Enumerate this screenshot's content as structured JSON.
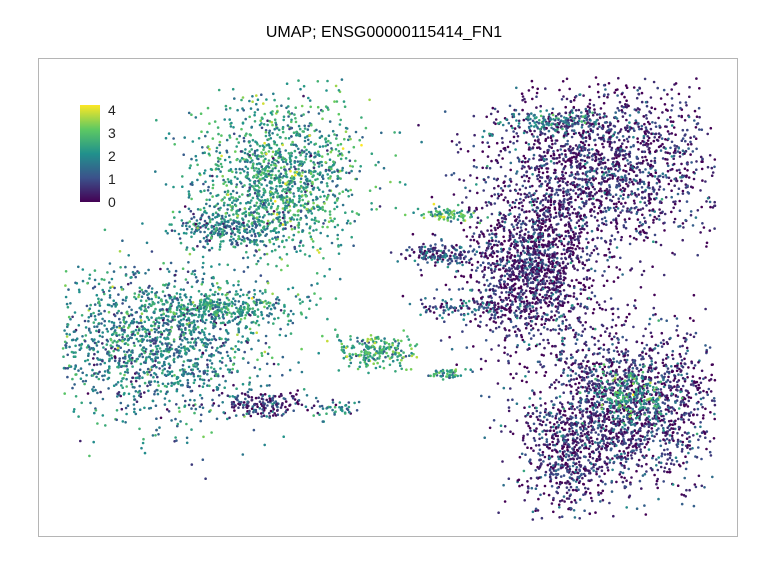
{
  "chart_data": {
    "type": "scatter",
    "title": "UMAP; ENSG00000115414_FN1",
    "xlabel": "",
    "ylabel": "",
    "grid": false,
    "legend_placement": "top-left",
    "colorscale": "viridis",
    "colorbar": {
      "min": 0,
      "max": 4.2,
      "ticks": [
        "0",
        "1",
        "2",
        "3",
        "4"
      ],
      "tick_values": [
        0,
        1,
        2,
        3,
        4
      ]
    },
    "clusters": [
      {
        "name": "upper-left island",
        "cx": 0.33,
        "cy": 0.77,
        "sx": 0.065,
        "sy": 0.09,
        "n": 1400,
        "mean": 2.3
      },
      {
        "name": "upper-left tail",
        "cx": 0.25,
        "cy": 0.66,
        "sx": 0.04,
        "sy": 0.02,
        "n": 250,
        "mean": 1.7
      },
      {
        "name": "left lobe",
        "cx": 0.14,
        "cy": 0.4,
        "sx": 0.085,
        "sy": 0.085,
        "n": 1500,
        "mean": 1.8
      },
      {
        "name": "left lobe streak",
        "cx": 0.24,
        "cy": 0.48,
        "sx": 0.06,
        "sy": 0.02,
        "n": 350,
        "mean": 2.2
      },
      {
        "name": "small bottom cluster",
        "cx": 0.31,
        "cy": 0.26,
        "sx": 0.035,
        "sy": 0.015,
        "n": 180,
        "mean": 0.6
      },
      {
        "name": "bottom specks",
        "cx": 0.42,
        "cy": 0.25,
        "sx": 0.02,
        "sy": 0.01,
        "n": 40,
        "mean": 1.8
      },
      {
        "name": "center streak",
        "cx": 0.48,
        "cy": 0.38,
        "sx": 0.03,
        "sy": 0.02,
        "n": 220,
        "mean": 2.5
      },
      {
        "name": "center speck",
        "cx": 0.59,
        "cy": 0.33,
        "sx": 0.015,
        "sy": 0.006,
        "n": 50,
        "mean": 2.3
      },
      {
        "name": "middle thin cluster",
        "cx": 0.58,
        "cy": 0.6,
        "sx": 0.03,
        "sy": 0.012,
        "n": 160,
        "mean": 1.0
      },
      {
        "name": "middle top streak",
        "cx": 0.59,
        "cy": 0.69,
        "sx": 0.025,
        "sy": 0.008,
        "n": 80,
        "mean": 2.6
      },
      {
        "name": "middle lower streak",
        "cx": 0.62,
        "cy": 0.48,
        "sx": 0.04,
        "sy": 0.012,
        "n": 110,
        "mean": 1.2
      },
      {
        "name": "right upper mass",
        "cx": 0.83,
        "cy": 0.8,
        "sx": 0.09,
        "sy": 0.09,
        "n": 1800,
        "mean": 0.45
      },
      {
        "name": "right middle band",
        "cx": 0.72,
        "cy": 0.57,
        "sx": 0.05,
        "sy": 0.09,
        "n": 1500,
        "mean": 0.4
      },
      {
        "name": "right lower mass",
        "cx": 0.87,
        "cy": 0.26,
        "sx": 0.075,
        "sy": 0.09,
        "n": 1700,
        "mean": 0.55
      },
      {
        "name": "right bottom tail",
        "cx": 0.77,
        "cy": 0.14,
        "sx": 0.035,
        "sy": 0.06,
        "n": 500,
        "mean": 0.5
      },
      {
        "name": "right lower bright",
        "cx": 0.87,
        "cy": 0.28,
        "sx": 0.03,
        "sy": 0.03,
        "n": 200,
        "mean": 2.4
      },
      {
        "name": "right top streak",
        "cx": 0.76,
        "cy": 0.9,
        "sx": 0.045,
        "sy": 0.012,
        "n": 150,
        "mean": 1.6
      }
    ]
  }
}
